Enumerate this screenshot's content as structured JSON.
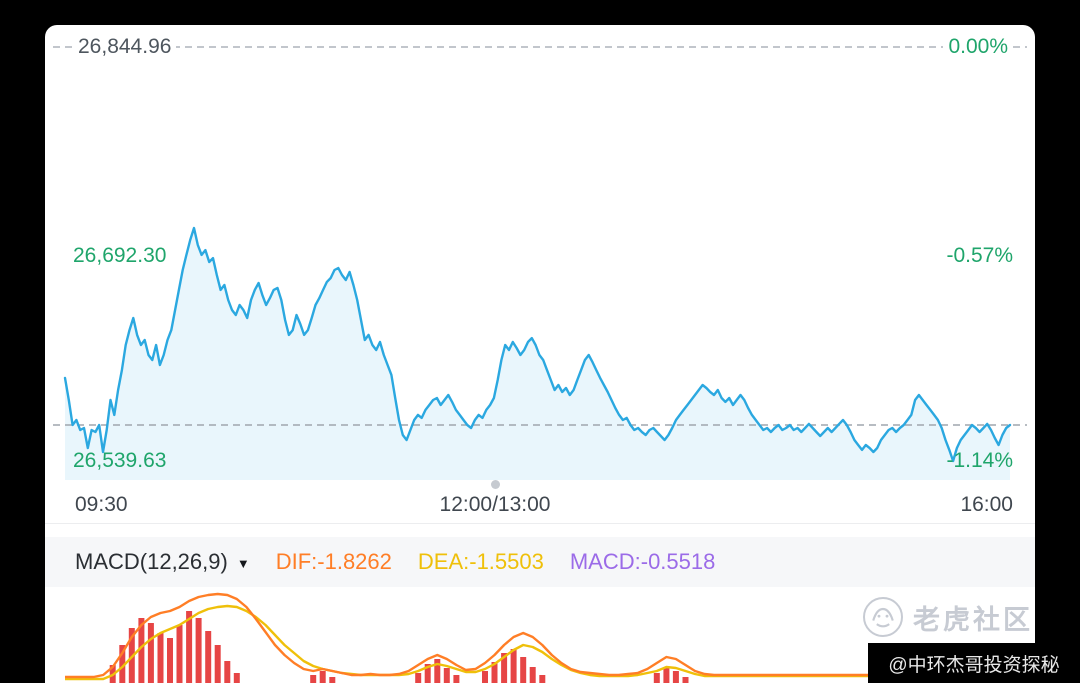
{
  "watermark": {
    "text": "老虎社区"
  },
  "credit": "@中环杰哥投资探秘",
  "colors": {
    "price_line": "#2BA8E0",
    "price_fill": "#E9F6FC",
    "green_label": "#1FA56B",
    "gray_label": "#4E565E",
    "gridline": "#ADB3BB",
    "dif_orange": "#FF7E26",
    "dea_yellow": "#EFC00A",
    "macd_purple": "#9B6BE8",
    "histogram_red": "#E64545"
  },
  "chart_data": [
    {
      "type": "area",
      "x_ticks": [
        "09:30",
        "12:00/13:00",
        "16:00"
      ],
      "y_axis": {
        "max": 26844.96,
        "mid": 26692.3,
        "min": 26539.63
      },
      "y_axis_labels": [
        "26,844.96",
        "26,692.30",
        "26,539.63"
      ],
      "pct_labels": [
        "0.00%",
        "-0.57%",
        "-1.14%"
      ],
      "prev_close": 26844.96,
      "last_price": 26566.2,
      "line_color": "#2BA8E0",
      "fill_color": "#E9F6FC",
      "grid": "dashed-top-and-last-price",
      "legend": "none",
      "prices": [
        26600.9,
        26584.6,
        26566.2,
        26569.9,
        26562.5,
        26564.0,
        26549.2,
        26562.5,
        26561.0,
        26566.2,
        26546.3,
        26562.5,
        26584.6,
        26573.6,
        26592.0,
        26606.7,
        26625.2,
        26636.2,
        26645.1,
        26632.6,
        26625.2,
        26628.9,
        26617.8,
        26614.1,
        26625.2,
        26610.4,
        26617.8,
        26628.9,
        26636.2,
        26651.0,
        26665.8,
        26680.5,
        26691.6,
        26702.6,
        26711.5,
        26698.9,
        26691.6,
        26695.2,
        26686.4,
        26689.3,
        26676.8,
        26665.8,
        26669.4,
        26658.4,
        26651.0,
        26647.3,
        26654.7,
        26651.0,
        26645.1,
        26658.4,
        26665.8,
        26670.9,
        26662.1,
        26654.7,
        26659.8,
        26665.8,
        26667.2,
        26658.4,
        26643.6,
        26632.6,
        26636.2,
        26647.3,
        26640.7,
        26632.6,
        26636.2,
        26645.1,
        26654.7,
        26659.8,
        26665.8,
        26671.7,
        26674.6,
        26680.5,
        26682.0,
        26676.8,
        26673.1,
        26679.0,
        26669.4,
        26658.4,
        26643.6,
        26628.9,
        26632.6,
        26625.2,
        26621.5,
        26627.4,
        26617.8,
        26610.4,
        26603.1,
        26586.1,
        26569.9,
        26558.8,
        26555.1,
        26562.5,
        26569.9,
        26573.6,
        26571.4,
        26577.3,
        26580.9,
        26584.6,
        26586.1,
        26580.9,
        26584.6,
        26588.3,
        26583.2,
        26577.3,
        26573.6,
        26569.9,
        26566.2,
        26564.0,
        26569.9,
        26573.6,
        26571.4,
        26577.3,
        26580.9,
        26586.1,
        26599.4,
        26614.1,
        26625.2,
        26621.5,
        26627.4,
        26623.0,
        26617.8,
        26621.5,
        26627.4,
        26630.3,
        26625.2,
        26617.8,
        26614.1,
        26606.7,
        26599.4,
        26592.0,
        26595.7,
        26590.5,
        26593.5,
        26588.3,
        26592.0,
        26599.4,
        26606.7,
        26614.1,
        26617.8,
        26612.6,
        26606.7,
        26600.9,
        26595.7,
        26590.5,
        26584.6,
        26578.7,
        26573.6,
        26569.9,
        26571.4,
        26566.2,
        26562.5,
        26564.0,
        26561.0,
        26558.8,
        26562.5,
        26564.0,
        26561.0,
        26558.1,
        26555.1,
        26558.8,
        26564.0,
        26569.9,
        26573.6,
        26577.3,
        26580.9,
        26584.6,
        26588.3,
        26592.0,
        26595.7,
        26593.5,
        26590.5,
        26588.3,
        26592.0,
        26586.1,
        26583.2,
        26586.1,
        26580.9,
        26584.6,
        26588.3,
        26584.6,
        26578.7,
        26573.6,
        26569.9,
        26566.2,
        26562.5,
        26564.0,
        26561.0,
        26564.0,
        26566.2,
        26562.5,
        26564.0,
        26566.2,
        26562.5,
        26564.0,
        26561.0,
        26564.0,
        26567.0,
        26564.0,
        26561.0,
        26558.1,
        26561.0,
        26564.0,
        26561.0,
        26564.0,
        26567.0,
        26569.9,
        26566.2,
        26561.0,
        26555.1,
        26551.4,
        26547.8,
        26551.4,
        26549.2,
        26546.3,
        26549.2,
        26555.1,
        26558.8,
        26562.5,
        26564.0,
        26561.0,
        26564.0,
        26566.2,
        26569.9,
        26573.6,
        26584.6,
        26588.3,
        26584.6,
        26580.9,
        26577.3,
        26573.6,
        26569.9,
        26564.0,
        26555.1,
        26547.8,
        26539.6,
        26549.2,
        26555.1,
        26558.8,
        26562.5,
        26566.2,
        26564.0,
        26561.0,
        26564.0,
        26567.0,
        26562.5,
        26556.6,
        26551.4,
        26558.8,
        26564.0,
        26566.2
      ]
    },
    {
      "type": "macd",
      "label": "MACD(12,26,9)",
      "dif": {
        "label": "DIF:-1.8262",
        "value": -1.8262,
        "color": "#FF7E26"
      },
      "dea": {
        "label": "DEA:-1.5503",
        "value": -1.5503,
        "color": "#EFC00A"
      },
      "macd": {
        "label": "MACD:-0.5518",
        "value": -0.5518,
        "color": "#9B6BE8"
      },
      "hist_color": "#E64545",
      "histogram": [
        0,
        0,
        0,
        0,
        0,
        18,
        38,
        55,
        65,
        60,
        50,
        45,
        58,
        72,
        65,
        52,
        38,
        22,
        10,
        0,
        0,
        0,
        0,
        0,
        0,
        0,
        8,
        12,
        6,
        0,
        0,
        0,
        0,
        0,
        0,
        0,
        0,
        10,
        19,
        24,
        15,
        8,
        0,
        0,
        12,
        21,
        30,
        34,
        26,
        16,
        8,
        0,
        0,
        0,
        0,
        0,
        0,
        0,
        0,
        0,
        0,
        0,
        10,
        16,
        12,
        6,
        0,
        0,
        0,
        0,
        0,
        0,
        0,
        0,
        0,
        0,
        0,
        0,
        0,
        0,
        0,
        0,
        0,
        0,
        0,
        0,
        0,
        9,
        15,
        19,
        10,
        0,
        0,
        0,
        0,
        0,
        0,
        0,
        0,
        0
      ],
      "dif_line_y": [
        90,
        90,
        90,
        90,
        88,
        80,
        66,
        50,
        38,
        30,
        26,
        24,
        20,
        14,
        10,
        8,
        7,
        8,
        12,
        20,
        32,
        45,
        58,
        68,
        76,
        82,
        84,
        82,
        84,
        86,
        88,
        88,
        87,
        88,
        88,
        87,
        84,
        78,
        72,
        68,
        72,
        78,
        83,
        82,
        76,
        68,
        58,
        50,
        46,
        50,
        58,
        68,
        76,
        82,
        85,
        86,
        87,
        88,
        88,
        87,
        86,
        82,
        76,
        70,
        72,
        78,
        84,
        87,
        88,
        88,
        88,
        88,
        88,
        88,
        88,
        88,
        88,
        88,
        88,
        88,
        88,
        88,
        88,
        88,
        88,
        88,
        88,
        80,
        72,
        70,
        76,
        82,
        86,
        88,
        88,
        88,
        88,
        88,
        88,
        88
      ],
      "dea_line_y": [
        92,
        92,
        92,
        92,
        92,
        88,
        80,
        70,
        60,
        52,
        46,
        42,
        38,
        32,
        26,
        22,
        20,
        19,
        20,
        24,
        30,
        38,
        48,
        58,
        66,
        74,
        79,
        82,
        84,
        86,
        87,
        88,
        88,
        88,
        88,
        88,
        87,
        84,
        80,
        77,
        79,
        82,
        85,
        85,
        82,
        77,
        70,
        63,
        58,
        60,
        65,
        72,
        78,
        83,
        86,
        88,
        89,
        89,
        89,
        89,
        88,
        86,
        84,
        80,
        81,
        84,
        87,
        89,
        89,
        89,
        89,
        89,
        89,
        89,
        89,
        89,
        89,
        89,
        89,
        89,
        89,
        89,
        89,
        89,
        89,
        89,
        89,
        85,
        80,
        78,
        82,
        86,
        88,
        89,
        89,
        89,
        89,
        89,
        89,
        89
      ]
    }
  ]
}
